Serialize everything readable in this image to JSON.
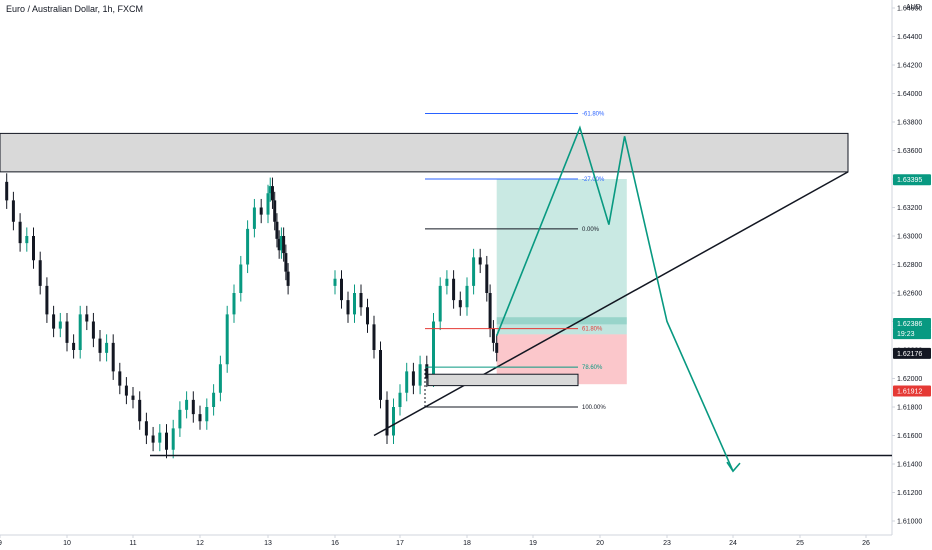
{
  "title": "Euro / Australian Dollar, 1h, FXCM",
  "currency_label": "AUD",
  "chart_data": {
    "type": "line",
    "title": "Euro / Australian Dollar, 1h, FXCM",
    "ylim": [
      1.609,
      1.647
    ],
    "y_ticks": [
      1.61,
      1.612,
      1.614,
      1.616,
      1.618,
      1.62,
      1.622,
      1.624,
      1.626,
      1.628,
      1.63,
      1.632,
      1.634,
      1.636,
      1.638,
      1.64,
      1.642,
      1.644,
      1.646
    ],
    "y_tick_labels": [
      "1.61000",
      "1.61200",
      "1.61400",
      "1.61600",
      "1.61800",
      "1.62000",
      "1.62200",
      "1.62400",
      "1.62600",
      "1.62800",
      "1.63000",
      "1.63200",
      "1.63400",
      "1.63600",
      "1.63800",
      "1.64000",
      "1.64200",
      "1.64400",
      "1.64600"
    ],
    "x_ticks": [
      9,
      10,
      11,
      12,
      13,
      16,
      17,
      18,
      19,
      20,
      23,
      24,
      25,
      26
    ],
    "x_tick_labels": [
      "9",
      "10",
      "11",
      "12",
      "13",
      "16",
      "17",
      "18",
      "19",
      "20",
      "23",
      "24",
      "25",
      "26"
    ],
    "series": [
      {
        "color": "#089981",
        "points": [
          [
            9.0,
            1.6338
          ],
          [
            9.1,
            1.6325
          ],
          [
            9.2,
            1.631
          ],
          [
            9.3,
            1.6295
          ],
          [
            9.4,
            1.63
          ],
          [
            9.5,
            1.6283
          ],
          [
            9.6,
            1.6265
          ],
          [
            9.7,
            1.6245
          ],
          [
            9.8,
            1.6235
          ],
          [
            9.9,
            1.624
          ],
          [
            10.0,
            1.6225
          ],
          [
            10.1,
            1.622
          ],
          [
            10.2,
            1.6245
          ],
          [
            10.3,
            1.624
          ],
          [
            10.4,
            1.6228
          ],
          [
            10.5,
            1.6218
          ],
          [
            10.6,
            1.6225
          ],
          [
            10.7,
            1.6205
          ],
          [
            10.8,
            1.6195
          ],
          [
            10.9,
            1.6188
          ],
          [
            11.0,
            1.6185
          ],
          [
            11.1,
            1.617
          ],
          [
            11.2,
            1.616
          ],
          [
            11.3,
            1.6155
          ],
          [
            11.4,
            1.6162
          ],
          [
            11.5,
            1.615
          ],
          [
            11.6,
            1.6165
          ],
          [
            11.7,
            1.6178
          ],
          [
            11.8,
            1.6185
          ],
          [
            11.9,
            1.6175
          ],
          [
            12.0,
            1.617
          ],
          [
            12.1,
            1.618
          ],
          [
            12.2,
            1.619
          ],
          [
            12.3,
            1.621
          ],
          [
            12.4,
            1.6245
          ],
          [
            12.5,
            1.626
          ],
          [
            12.6,
            1.628
          ],
          [
            12.7,
            1.6305
          ],
          [
            12.8,
            1.632
          ],
          [
            12.9,
            1.6315
          ],
          [
            13.0,
            1.633
          ],
          [
            13.1,
            1.6335
          ],
          [
            13.2,
            1.6325
          ],
          [
            13.3,
            1.631
          ],
          [
            13.4,
            1.6298
          ],
          [
            13.5,
            1.629
          ],
          [
            13.6,
            1.63
          ],
          [
            13.7,
            1.6288
          ],
          [
            13.8,
            1.6275
          ],
          [
            13.9,
            1.6265
          ],
          [
            16.0,
            1.627
          ],
          [
            16.1,
            1.6255
          ],
          [
            16.2,
            1.6245
          ],
          [
            16.3,
            1.626
          ],
          [
            16.4,
            1.625
          ],
          [
            16.5,
            1.6238
          ],
          [
            16.6,
            1.622
          ],
          [
            16.7,
            1.6185
          ],
          [
            16.8,
            1.616
          ],
          [
            16.9,
            1.618
          ],
          [
            17.0,
            1.619
          ],
          [
            17.1,
            1.6205
          ],
          [
            17.2,
            1.6195
          ],
          [
            17.3,
            1.621
          ],
          [
            17.4,
            1.62
          ],
          [
            17.5,
            1.624
          ],
          [
            17.6,
            1.6265
          ],
          [
            17.7,
            1.627
          ],
          [
            17.8,
            1.6255
          ],
          [
            17.9,
            1.625
          ],
          [
            18.0,
            1.6265
          ],
          [
            18.1,
            1.6285
          ],
          [
            18.2,
            1.628
          ],
          [
            18.3,
            1.626
          ],
          [
            18.35,
            1.6235
          ],
          [
            18.4,
            1.6225
          ],
          [
            18.45,
            1.6218
          ]
        ]
      }
    ],
    "zone": {
      "y_low": 1.6345,
      "y_high": 1.6372
    },
    "support_line_y": 1.6146,
    "trendline": [
      [
        16.6,
        1.616
      ],
      [
        25.7,
        1.6345
      ]
    ],
    "fibonacci": [
      {
        "label": "-61.80%",
        "y": 1.6386,
        "color": "#2962ff"
      },
      {
        "label": "-27.00%",
        "y": 1.634,
        "color": "#2962ff"
      },
      {
        "label": "0.00%",
        "y": 1.6305,
        "color": "#131722"
      },
      {
        "label": "61.80%",
        "y": 1.6235,
        "color": "#e53935"
      },
      {
        "label": "78.60%",
        "y": 1.6208,
        "color": "#089981"
      },
      {
        "label": "100.00%",
        "y": 1.618,
        "color": "#131722"
      }
    ],
    "position": {
      "entry": 1.6238,
      "target": 1.634,
      "stop": 1.6196,
      "x_start": 18.45,
      "x_end": 21.2
    },
    "projection": [
      [
        18.45,
        1.623
      ],
      [
        19.7,
        1.6376
      ],
      [
        20.4,
        1.6308
      ],
      [
        21.1,
        1.637
      ],
      [
        23.0,
        1.624
      ],
      [
        24.0,
        1.6135
      ]
    ],
    "price_badges": [
      {
        "label": "1.63395",
        "y": 1.63395,
        "bg": "#089981",
        "fg": "#ffffff"
      },
      {
        "label": "1.62386",
        "y": 1.62386,
        "bg": "#089981",
        "fg": "#ffffff"
      },
      {
        "label": "19:23",
        "y": 1.62315,
        "bg": "#089981",
        "fg": "#ffffff"
      },
      {
        "label": "1.62176",
        "y": 1.62176,
        "bg": "#131722",
        "fg": "#ffffff"
      },
      {
        "label": "1.61912",
        "y": 1.61912,
        "bg": "#e53935",
        "fg": "#ffffff"
      }
    ]
  }
}
